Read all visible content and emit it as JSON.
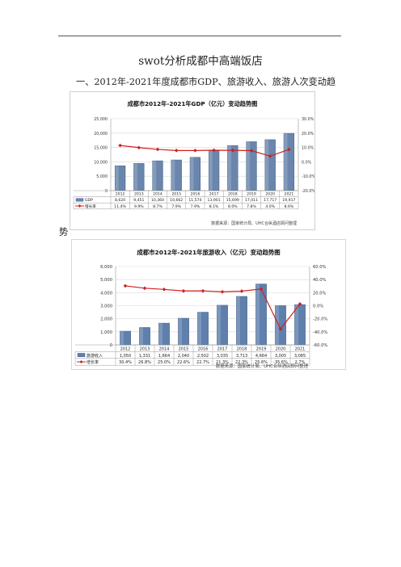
{
  "document": {
    "title": "swot分析成都中高端饭店",
    "section_heading_line1": "一、2012年-2021年度成都市GDP、旅游收入、旅游人次变动趋",
    "section_heading_line2": "势"
  },
  "chart_data": [
    {
      "type": "bar",
      "title": "成都市2012年-2021年GDP（亿元）变动趋势图",
      "categories": [
        "2012",
        "2013",
        "2014",
        "2015",
        "2016",
        "2017",
        "2018",
        "2019",
        "2020",
        "2021"
      ],
      "series": [
        {
          "name": "GDP",
          "type": "bar",
          "values": [
            8620,
            9451,
            10360,
            10662,
            11574,
            13901,
            15699,
            17011,
            17717,
            19917
          ],
          "labels": [
            "8,620",
            "9,451",
            "10,360",
            "10,662",
            "11,574",
            "13,901",
            "15,699",
            "17,011",
            "17,717",
            "19,917"
          ]
        },
        {
          "name": "增长率",
          "type": "line",
          "axis": "right",
          "values": [
            11.4,
            9.9,
            8.7,
            7.9,
            7.9,
            8.1,
            8.0,
            7.8,
            4.0,
            8.6
          ],
          "labels": [
            "11.4%",
            "9.9%",
            "8.7%",
            "7.9%",
            "7.9%",
            "8.1%",
            "8.0%",
            "7.8%",
            "4.0%",
            "8.6%"
          ]
        }
      ],
      "ylim": [
        0,
        25000
      ],
      "yticks": [
        "0",
        "5,000",
        "10,000",
        "15,000",
        "20,000",
        "25,000"
      ],
      "y2lim": [
        -20,
        30
      ],
      "y2ticks": [
        "-20.0%",
        "-10.0%",
        "0.0%",
        "10.0%",
        "20.0%",
        "30.0%"
      ],
      "source": "数据来源：国家统计局、UHC合纵酒店顾问整理",
      "legend": "table-below",
      "colors": {
        "bar": "#6a86ad",
        "line": "#d02020"
      }
    },
    {
      "type": "bar",
      "title": "成都市2012年-2021年旅游收入（亿元）变动趋势图",
      "categories": [
        "2012",
        "2013",
        "2014",
        "2015",
        "2016",
        "2017",
        "2018",
        "2019",
        "2020",
        "2021"
      ],
      "series": [
        {
          "name": "旅游收入",
          "type": "bar",
          "values": [
            1050,
            1331,
            1664,
            2040,
            2502,
            3035,
            3713,
            4664,
            3005,
            3085
          ],
          "labels": [
            "1,050",
            "1,331",
            "1,664",
            "2,040",
            "2,502",
            "3,035",
            "3,713",
            "4,664",
            "3,005",
            "3,085"
          ]
        },
        {
          "name": "增长率",
          "type": "line",
          "axis": "right",
          "values": [
            30.4,
            26.8,
            25.0,
            22.6,
            22.7,
            21.3,
            22.3,
            25.6,
            -35.6,
            2.7
          ],
          "labels": [
            "30.4%",
            "26.8%",
            "25.0%",
            "22.6%",
            "22.7%",
            "21.3%",
            "22.3%",
            "25.6%",
            "-35.6%",
            "2.7%"
          ]
        }
      ],
      "ylim": [
        0,
        6000
      ],
      "yticks": [
        "0",
        "1,000",
        "2,000",
        "3,000",
        "4,000",
        "5,000",
        "6,000"
      ],
      "y2lim": [
        -60,
        60
      ],
      "y2ticks": [
        "-60.0%",
        "-40.0%",
        "-20.0%",
        "0.0%",
        "20.0%",
        "40.0%",
        "60.0%"
      ],
      "source": "数据来源：国家统计局、UHC合纵酒店顾问整理",
      "legend": "table-below",
      "colors": {
        "bar": "#5f7fac",
        "line": "#d02020"
      }
    }
  ]
}
